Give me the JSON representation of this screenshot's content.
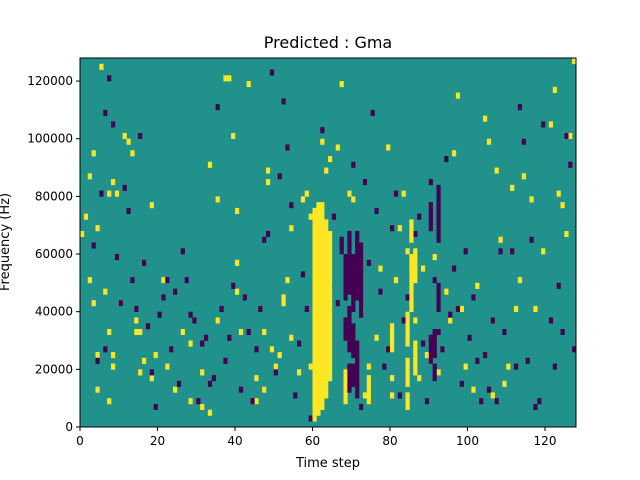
{
  "chart_data": {
    "type": "heatmap",
    "title": "Predicted : Gma",
    "xlabel": "Time step",
    "ylabel": "Frequency (Hz)",
    "xlim": [
      0,
      128
    ],
    "ylim": [
      0,
      128000
    ],
    "x_ticks": [
      0,
      20,
      40,
      60,
      80,
      100,
      120
    ],
    "y_ticks": [
      0,
      20000,
      40000,
      60000,
      80000,
      100000,
      120000
    ],
    "x_tick_labels": [
      "0",
      "20",
      "40",
      "60",
      "80",
      "100",
      "120"
    ],
    "y_tick_labels": [
      "0",
      "20000",
      "40000",
      "60000",
      "80000",
      "100000",
      "120000"
    ],
    "grid": false,
    "colormap": "viridis",
    "colors": {
      "background": "#21918c",
      "high": "#fde725",
      "low": "#440154"
    },
    "values_meaning": "high/low cells relative to background level",
    "cells": {
      "high": [
        [
          0,
          66000
        ],
        [
          1,
          72000
        ],
        [
          2,
          50000
        ],
        [
          2,
          86000
        ],
        [
          3,
          94000
        ],
        [
          3,
          42000
        ],
        [
          4,
          12000
        ],
        [
          4,
          24000
        ],
        [
          4,
          68000
        ],
        [
          5,
          124000
        ],
        [
          6,
          46000
        ],
        [
          7,
          80000
        ],
        [
          7,
          32000
        ],
        [
          7,
          8000
        ],
        [
          8,
          24000
        ],
        [
          8,
          20000
        ],
        [
          8,
          84000
        ],
        [
          9,
          80000
        ],
        [
          10,
          42000
        ],
        [
          11,
          100000
        ],
        [
          12,
          98000
        ],
        [
          13,
          94000
        ],
        [
          14,
          36000
        ],
        [
          14,
          32000
        ],
        [
          15,
          32000
        ],
        [
          15,
          18000
        ],
        [
          16,
          22000
        ],
        [
          18,
          16000
        ],
        [
          18,
          76000
        ],
        [
          19,
          24000
        ],
        [
          21,
          50000
        ],
        [
          22,
          20000
        ],
        [
          24,
          12000
        ],
        [
          26,
          32000
        ],
        [
          28,
          8000
        ],
        [
          28,
          28000
        ],
        [
          31,
          6000
        ],
        [
          31,
          18000
        ],
        [
          33,
          4000
        ],
        [
          33,
          90000
        ],
        [
          35,
          78000
        ],
        [
          35,
          36000
        ],
        [
          37,
          120000
        ],
        [
          38,
          120000
        ],
        [
          39,
          100000
        ],
        [
          40,
          74000
        ],
        [
          40,
          56000
        ],
        [
          40,
          46000
        ],
        [
          41,
          32000
        ],
        [
          43,
          118000
        ],
        [
          45,
          16000
        ],
        [
          45,
          8000
        ],
        [
          47,
          12000
        ],
        [
          47,
          32000
        ],
        [
          48,
          88000
        ],
        [
          48,
          84000
        ],
        [
          49,
          26000
        ],
        [
          50,
          20000
        ],
        [
          51,
          24000
        ],
        [
          52,
          42000
        ],
        [
          52,
          44000
        ],
        [
          53,
          50000
        ],
        [
          54,
          30000
        ],
        [
          54,
          68000
        ],
        [
          56,
          18000
        ],
        [
          57,
          78000
        ],
        [
          58,
          80000
        ],
        [
          59,
          20000
        ],
        [
          59,
          72000
        ],
        [
          60,
          70000
        ],
        [
          62,
          98000
        ],
        [
          63,
          88000
        ],
        [
          64,
          92000
        ],
        [
          66,
          96000
        ],
        [
          67,
          118000
        ],
        [
          69,
          80000
        ],
        [
          70,
          78000
        ],
        [
          72,
          40000
        ],
        [
          73,
          10000
        ],
        [
          74,
          20000
        ],
        [
          76,
          30000
        ],
        [
          77,
          54000
        ],
        [
          79,
          96000
        ],
        [
          80,
          16000
        ],
        [
          80,
          10000
        ],
        [
          81,
          50000
        ],
        [
          82,
          68000
        ],
        [
          83,
          80000
        ],
        [
          84,
          60000
        ],
        [
          85,
          42000
        ],
        [
          86,
          36000
        ],
        [
          86,
          22000
        ],
        [
          87,
          16000
        ],
        [
          88,
          54000
        ],
        [
          89,
          24000
        ],
        [
          90,
          22000
        ],
        [
          91,
          58000
        ],
        [
          92,
          18000
        ],
        [
          94,
          46000
        ],
        [
          95,
          36000
        ],
        [
          96,
          94000
        ],
        [
          97,
          114000
        ],
        [
          98,
          40000
        ],
        [
          99,
          20000
        ],
        [
          101,
          12000
        ],
        [
          102,
          48000
        ],
        [
          104,
          106000
        ],
        [
          105,
          98000
        ],
        [
          106,
          10000
        ],
        [
          107,
          88000
        ],
        [
          108,
          64000
        ],
        [
          109,
          14000
        ],
        [
          110,
          20000
        ],
        [
          111,
          82000
        ],
        [
          112,
          40000
        ],
        [
          113,
          50000
        ],
        [
          114,
          86000
        ],
        [
          116,
          78000
        ],
        [
          117,
          40000
        ],
        [
          119,
          60000
        ],
        [
          121,
          104000
        ],
        [
          122,
          116000
        ],
        [
          123,
          80000
        ],
        [
          124,
          76000
        ],
        [
          125,
          66000
        ],
        [
          126,
          100000
        ],
        [
          127,
          126000
        ]
      ],
      "low": [
        [
          3,
          62000
        ],
        [
          4,
          22000
        ],
        [
          5,
          80000
        ],
        [
          6,
          26000
        ],
        [
          6,
          108000
        ],
        [
          7,
          120000
        ],
        [
          8,
          104000
        ],
        [
          9,
          58000
        ],
        [
          10,
          42000
        ],
        [
          11,
          82000
        ],
        [
          12,
          74000
        ],
        [
          13,
          50000
        ],
        [
          14,
          40000
        ],
        [
          15,
          100000
        ],
        [
          16,
          56000
        ],
        [
          17,
          34000
        ],
        [
          18,
          18000
        ],
        [
          19,
          6000
        ],
        [
          20,
          38000
        ],
        [
          21,
          44000
        ],
        [
          22,
          50000
        ],
        [
          23,
          26000
        ],
        [
          24,
          46000
        ],
        [
          25,
          14000
        ],
        [
          26,
          60000
        ],
        [
          27,
          50000
        ],
        [
          28,
          38000
        ],
        [
          29,
          36000
        ],
        [
          30,
          8000
        ],
        [
          31,
          28000
        ],
        [
          32,
          30000
        ],
        [
          33,
          14000
        ],
        [
          34,
          16000
        ],
        [
          35,
          110000
        ],
        [
          36,
          40000
        ],
        [
          37,
          22000
        ],
        [
          38,
          30000
        ],
        [
          39,
          48000
        ],
        [
          41,
          12000
        ],
        [
          42,
          44000
        ],
        [
          43,
          32000
        ],
        [
          44,
          8000
        ],
        [
          45,
          26000
        ],
        [
          46,
          40000
        ],
        [
          47,
          64000
        ],
        [
          48,
          66000
        ],
        [
          49,
          122000
        ],
        [
          50,
          18000
        ],
        [
          51,
          86000
        ],
        [
          52,
          112000
        ],
        [
          53,
          96000
        ],
        [
          54,
          76000
        ],
        [
          55,
          10000
        ],
        [
          56,
          28000
        ],
        [
          57,
          52000
        ],
        [
          58,
          40000
        ],
        [
          59,
          2000
        ],
        [
          62,
          102000
        ],
        [
          64,
          48000
        ],
        [
          65,
          72000
        ],
        [
          66,
          42000
        ],
        [
          67,
          62000
        ],
        [
          68,
          34000
        ],
        [
          69,
          20000
        ],
        [
          70,
          90000
        ],
        [
          71,
          62000
        ],
        [
          72,
          6000
        ],
        [
          73,
          84000
        ],
        [
          74,
          56000
        ],
        [
          75,
          108000
        ],
        [
          76,
          74000
        ],
        [
          77,
          46000
        ],
        [
          78,
          20000
        ],
        [
          79,
          26000
        ],
        [
          80,
          68000
        ],
        [
          81,
          80000
        ],
        [
          82,
          10000
        ],
        [
          83,
          36000
        ],
        [
          84,
          44000
        ],
        [
          85,
          52000
        ],
        [
          86,
          66000
        ],
        [
          87,
          72000
        ],
        [
          88,
          28000
        ],
        [
          89,
          8000
        ],
        [
          90,
          84000
        ],
        [
          91,
          50000
        ],
        [
          92,
          32000
        ],
        [
          93,
          26000
        ],
        [
          94,
          92000
        ],
        [
          95,
          38000
        ],
        [
          96,
          54000
        ],
        [
          97,
          40000
        ],
        [
          98,
          14000
        ],
        [
          99,
          60000
        ],
        [
          100,
          30000
        ],
        [
          101,
          44000
        ],
        [
          102,
          22000
        ],
        [
          103,
          8000
        ],
        [
          104,
          24000
        ],
        [
          105,
          12000
        ],
        [
          106,
          36000
        ],
        [
          107,
          8000
        ],
        [
          108,
          60000
        ],
        [
          109,
          32000
        ],
        [
          111,
          60000
        ],
        [
          112,
          20000
        ],
        [
          113,
          110000
        ],
        [
          114,
          98000
        ],
        [
          115,
          22000
        ],
        [
          116,
          64000
        ],
        [
          117,
          6000
        ],
        [
          118,
          8000
        ],
        [
          119,
          104000
        ],
        [
          121,
          36000
        ],
        [
          122,
          20000
        ],
        [
          123,
          48000
        ],
        [
          124,
          32000
        ],
        [
          125,
          100000
        ],
        [
          126,
          90000
        ],
        [
          127,
          26000
        ]
      ],
      "band_high": [
        [
          60,
          2000,
          74000
        ],
        [
          61,
          4000,
          76000
        ],
        [
          62,
          6000,
          76000
        ],
        [
          63,
          10000,
          70000
        ],
        [
          64,
          16000,
          66000
        ],
        [
          68,
          8000,
          18000
        ],
        [
          74,
          8000,
          16000
        ],
        [
          80,
          26000,
          34000
        ],
        [
          84,
          6000,
          10000
        ],
        [
          84,
          14000,
          22000
        ],
        [
          84,
          28000,
          38000
        ],
        [
          85,
          40000,
          58000
        ],
        [
          85,
          64000,
          70000
        ],
        [
          86,
          18000,
          28000
        ],
        [
          86,
          50000,
          60000
        ]
      ],
      "band_low": [
        [
          67,
          60000,
          64000
        ],
        [
          68,
          30000,
          36000
        ],
        [
          68,
          44000,
          58000
        ],
        [
          69,
          12000,
          20000
        ],
        [
          69,
          26000,
          40000
        ],
        [
          69,
          46000,
          66000
        ],
        [
          70,
          14000,
          20000
        ],
        [
          70,
          24000,
          34000
        ],
        [
          70,
          40000,
          58000
        ],
        [
          71,
          10000,
          28000
        ],
        [
          71,
          44000,
          66000
        ],
        [
          72,
          38000,
          62000
        ],
        [
          90,
          22000,
          30000
        ],
        [
          90,
          68000,
          76000
        ],
        [
          91,
          24000,
          32000
        ],
        [
          91,
          16000,
          20000
        ],
        [
          92,
          40000,
          48000
        ],
        [
          92,
          64000,
          82000
        ]
      ]
    }
  }
}
